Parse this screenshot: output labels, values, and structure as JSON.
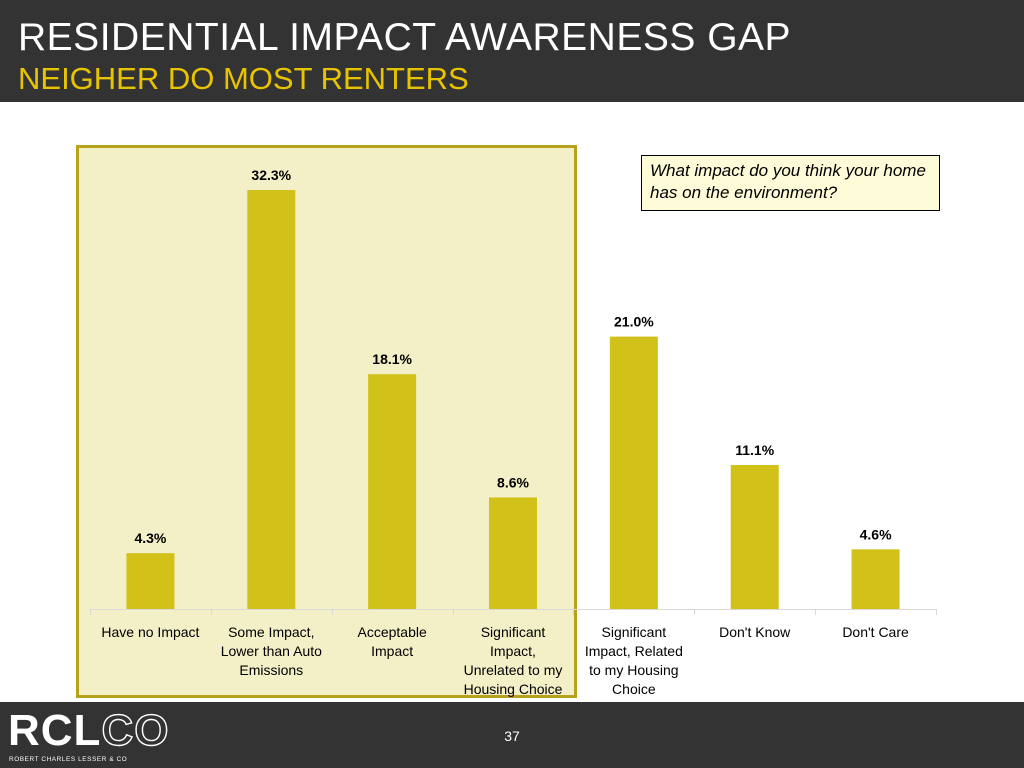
{
  "header": {
    "title": "RESIDENTIAL IMPACT AWARENESS GAP",
    "subtitle": "NEIGHER DO MOST RENTERS"
  },
  "question": "What impact do you think your home has on the environment?",
  "footer": {
    "logo_text_main": "RCL",
    "logo_text_accent": "CO",
    "logo_tagline": "ROBERT CHARLES LESSER & CO",
    "page_number": "37"
  },
  "colors": {
    "bar": "#d2c118",
    "highlight_fill": "#f3efc6",
    "highlight_border": "#b7a21c",
    "subtitle": "#e8c400",
    "header_bg": "#333333"
  },
  "chart_data": {
    "type": "bar",
    "title": "",
    "xlabel": "",
    "ylabel": "",
    "ylim": [
      0,
      35
    ],
    "grid": false,
    "categories": [
      "Have no Impact",
      "Some Impact, Lower than Auto Emissions",
      "Acceptable Impact",
      "Significant Impact, Unrelated to my Housing Choice",
      "Significant Impact, Related to my Housing Choice",
      "Don't Know",
      "Don't Care"
    ],
    "category_lines": [
      [
        "Have no Impact"
      ],
      [
        "Some Impact,",
        "Lower than Auto",
        "Emissions"
      ],
      [
        "Acceptable",
        "Impact"
      ],
      [
        "Significant",
        "Impact,",
        "Unrelated to my",
        "Housing Choice"
      ],
      [
        "Significant",
        "Impact, Related",
        "to my Housing",
        "Choice"
      ],
      [
        "Don't Know"
      ],
      [
        "Don't Care"
      ]
    ],
    "values": [
      4.3,
      32.3,
      18.1,
      8.6,
      21.0,
      11.1,
      4.6
    ],
    "value_labels": [
      "4.3%",
      "32.3%",
      "18.1%",
      "8.6%",
      "21.0%",
      "11.1%",
      "4.6%"
    ],
    "highlighted_categories": [
      0,
      1,
      2,
      3
    ]
  }
}
